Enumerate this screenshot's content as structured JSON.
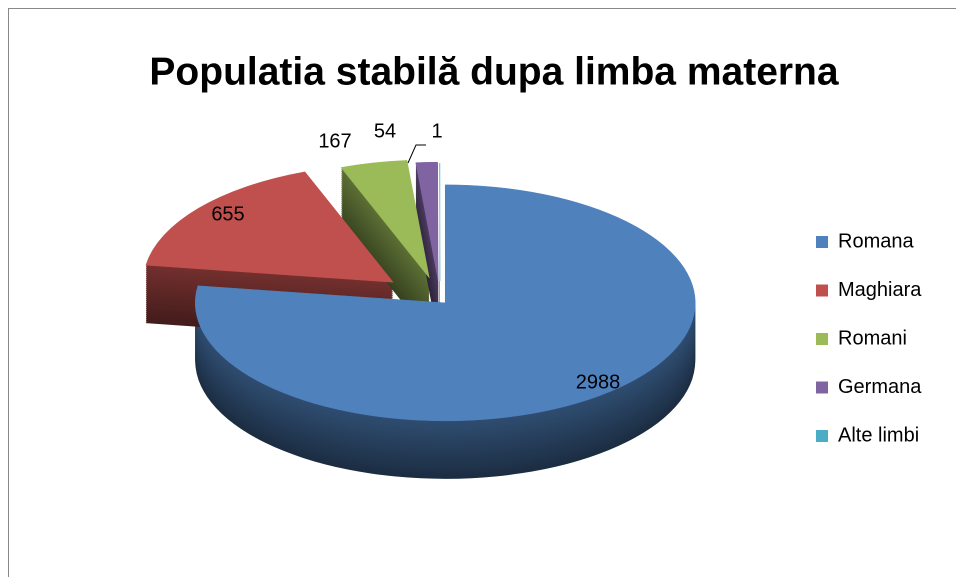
{
  "chart_data": {
    "type": "pie",
    "title": "Populatia stabilă dupa limba materna",
    "categories": [
      "Romana",
      "Maghiara",
      "Romani",
      "Germana",
      "Alte limbi"
    ],
    "values": [
      2988,
      655,
      167,
      54,
      1
    ],
    "colors": [
      "#4f81bd",
      "#c0504d",
      "#9bbb59",
      "#8064a2",
      "#4bacc6"
    ],
    "legend": "right"
  }
}
